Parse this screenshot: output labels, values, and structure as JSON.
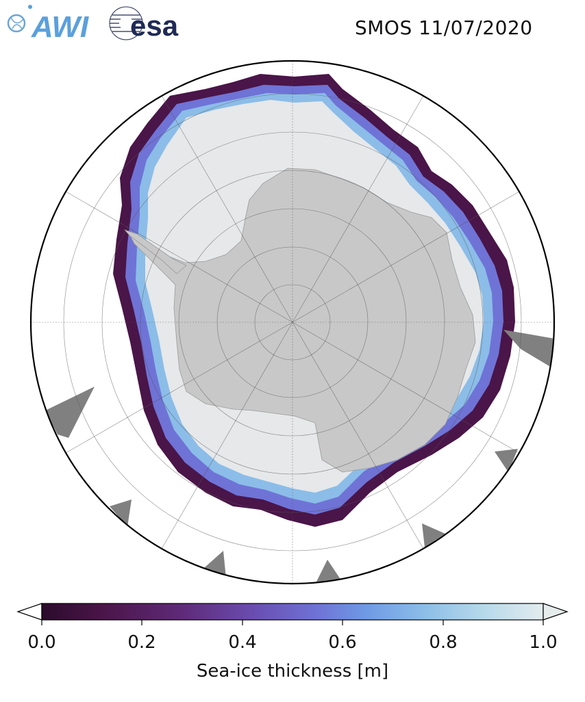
{
  "logos": {
    "awi_text": "AWI",
    "esa_text": "esa"
  },
  "title": "SMOS 11/07/2020",
  "colorbar": {
    "label": "Sea-ice thickness [m]",
    "ticks": [
      "0.0",
      "0.2",
      "0.4",
      "0.6",
      "0.8",
      "1.0"
    ],
    "range": [
      0.0,
      1.0
    ],
    "extend": "both",
    "colormap": [
      "#2b0b2c",
      "#4a1548",
      "#5f2a78",
      "#6a4cb0",
      "#6f73d6",
      "#6f9be6",
      "#8bbde8",
      "#b6d9ea",
      "#e3ecef"
    ]
  },
  "map": {
    "projection": "south-polar-stereographic",
    "land_color": "#c8c8c8",
    "thick_ice_color": "#e6e8ea",
    "mask_color": "#808080",
    "ocean_color": "#ffffff",
    "graticule": true
  }
}
